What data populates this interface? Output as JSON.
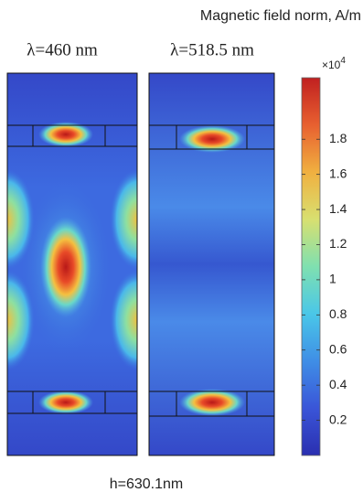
{
  "chart_data": {
    "type": "colorbar",
    "title": "Magnetic field norm, A/m",
    "panel_labels": [
      "λ=460 nm",
      "λ=518.5 nm"
    ],
    "xlabel": "h=630.1nm",
    "scale_label": "×10",
    "scale_power": "4",
    "ylim": [
      0,
      2.15
    ],
    "yticks": [
      0.2,
      0.4,
      0.6,
      0.8,
      1,
      1.2,
      1.4,
      1.6,
      1.8
    ],
    "colormap": [
      "#2a2fb0",
      "#3a55d8",
      "#3f8ee6",
      "#4ac7e8",
      "#7fe0b0",
      "#d8e070",
      "#f0b040",
      "#e86030",
      "#c02020"
    ]
  }
}
